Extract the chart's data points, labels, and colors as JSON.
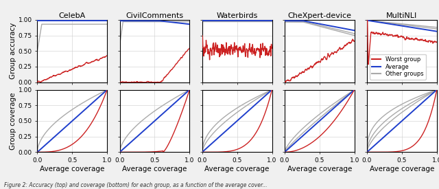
{
  "titles": [
    "CelebA",
    "CivilComments",
    "Waterbirds",
    "CheXpert-device",
    "MultiNLI"
  ],
  "ylabel_top": "Group accuracy",
  "ylabel_bottom": "Group coverage",
  "xlabel": "Average coverage",
  "worst_color": "#cc2222",
  "avg_color": "#1f3fcc",
  "other_color": "#aaaaaa",
  "legend_labels": [
    "Worst group",
    "Average",
    "Other groups"
  ],
  "figsize": [
    6.4,
    2.75
  ],
  "bg_color": "#f0f0f0",
  "ax_bg_color": "#ffffff",
  "caption": "Figure 2: Accuracy (top) and coverage (bottom) for each group, as a function of the average cover..."
}
